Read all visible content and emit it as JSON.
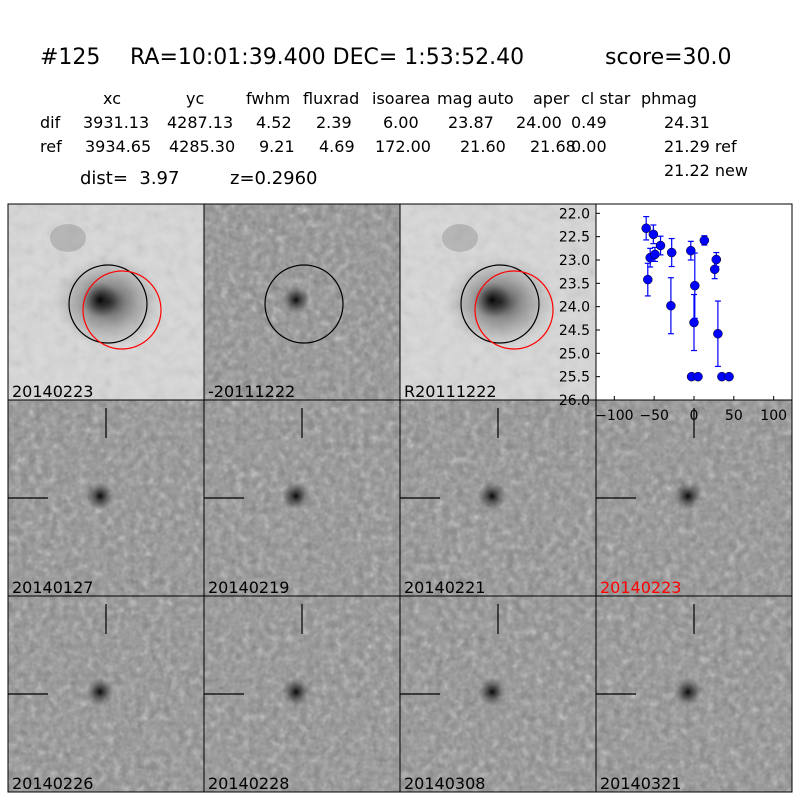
{
  "header": {
    "id": "#125",
    "coords": "RA=10:01:39.400 DEC= 1:53:52.40",
    "score": "score=30.0"
  },
  "table": {
    "columns": [
      "xc",
      "yc",
      "fwhm",
      "fluxrad",
      "isoarea",
      "mag auto",
      "aper",
      "cl star",
      "phmag"
    ],
    "rows": [
      [
        "dif",
        "3931.13",
        "4287.13",
        "4.52",
        "2.39",
        "6.00",
        "23.87",
        "24.00",
        "0.49",
        "24.31"
      ],
      [
        "ref",
        "3934.65",
        "4285.30",
        "9.21",
        "4.69",
        "172.00",
        "21.60",
        "21.68",
        "0.00",
        "21.29 ref"
      ]
    ],
    "extra": "21.22 new"
  },
  "info": {
    "dist": "dist=  3.97",
    "z": "z=0.2960"
  },
  "panels": [
    {
      "label": "20140223",
      "style": "ref",
      "circles": [
        "black",
        "red"
      ]
    },
    {
      "label": "-20111222",
      "style": "noisy",
      "circles": [
        "black"
      ]
    },
    {
      "label": "R20111222",
      "style": "ref",
      "circles": [
        "black",
        "red"
      ]
    },
    {
      "label": "20140127",
      "style": "noisy"
    },
    {
      "label": "20140219",
      "style": "noisy"
    },
    {
      "label": "20140221",
      "style": "noisy"
    },
    {
      "label": "20140223",
      "style": "noisy",
      "label_color": "red"
    },
    {
      "label": "20140226",
      "style": "noisy"
    },
    {
      "label": "20140228",
      "style": "noisy"
    },
    {
      "label": "20140308",
      "style": "noisy"
    },
    {
      "label": "20140321",
      "style": "noisy"
    }
  ],
  "chart_data": {
    "type": "errorbar",
    "xlim": [
      -123,
      123
    ],
    "ylim": [
      21.8,
      26
    ],
    "y_inverted": true,
    "xticks": [
      {
        "value": -100,
        "label": "−100"
      },
      {
        "value": -50,
        "label": "−50"
      },
      0,
      50,
      100
    ],
    "yticks": [
      {
        "value": 22,
        "label": "22.0"
      },
      22.5,
      {
        "value": 23,
        "label": "23.0"
      },
      23.5,
      {
        "value": 24,
        "label": "24.0"
      },
      24.5,
      {
        "value": 25,
        "label": "25.0"
      },
      25.5,
      {
        "value": 26,
        "label": "26.0"
      }
    ],
    "series": [
      {
        "color": "#0000ff",
        "x": [
          -60,
          -58,
          -55,
          -51,
          -49,
          -42,
          -28,
          -29,
          -4,
          0,
          1,
          -3,
          5,
          13,
          26,
          28,
          30,
          35,
          44
        ],
        "values": [
          22.32,
          23.42,
          22.95,
          22.45,
          22.88,
          22.69,
          22.84,
          23.98,
          22.8,
          24.34,
          23.55,
          25.5,
          25.5,
          22.58,
          23.2,
          22.99,
          24.58,
          25.5,
          25.5
        ],
        "errors": [
          0.25,
          0.35,
          0.2,
          0.2,
          0.15,
          0.2,
          0.3,
          0.6,
          0.2,
          0.6,
          0.7,
          0,
          0,
          0.1,
          0.2,
          0.15,
          0.7,
          0,
          0
        ]
      }
    ]
  }
}
